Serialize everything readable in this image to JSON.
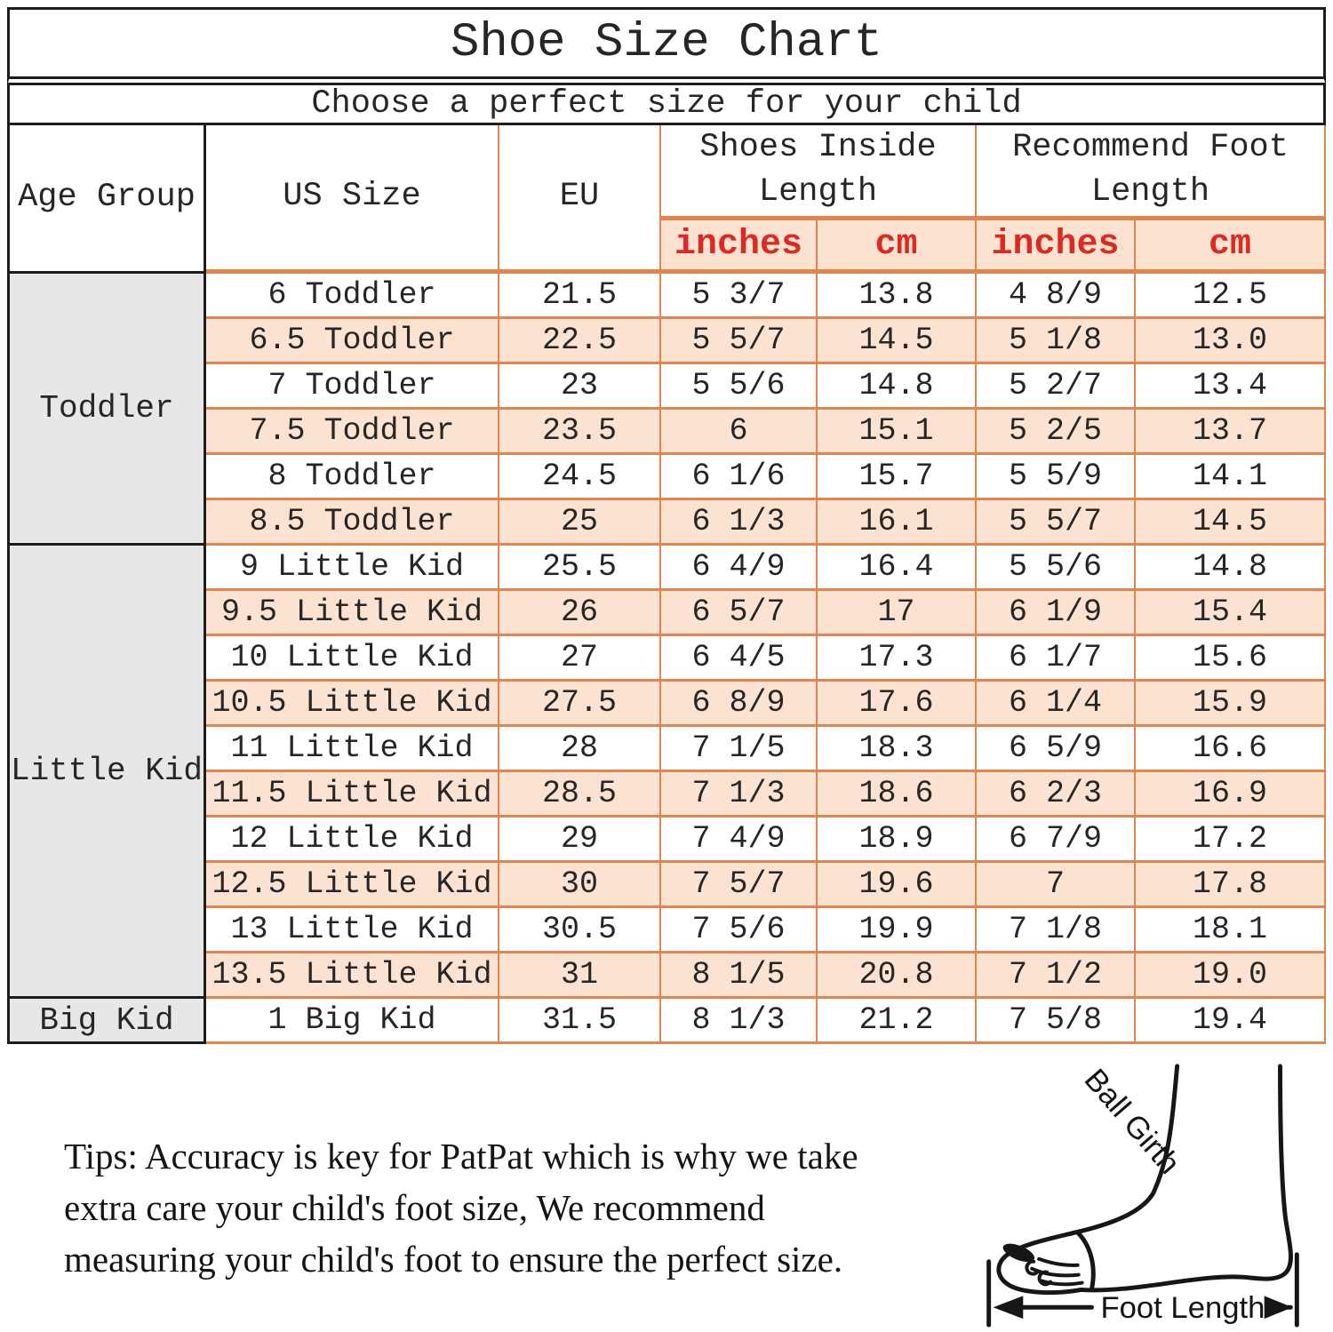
{
  "title": "Shoe Size Chart",
  "subtitle": "Choose a perfect size for your child",
  "colors": {
    "row_peach": "#fce3d1",
    "border_orange": "#e0854d",
    "subheader_red": "#dc2a22",
    "age_group_gray": "#e7e7e7",
    "border_black": "#1d1d1d",
    "text_dark": "#262626"
  },
  "table": {
    "headers": {
      "age_group": "Age Group",
      "us_size": "US Size",
      "eu": "EU",
      "shoes_inside_length": "Shoes Inside Length",
      "recommend_foot_length": "Recommend Foot Length"
    },
    "sub_headers": [
      "inches",
      "cm",
      "inches",
      "cm"
    ],
    "groups": [
      {
        "label": "Toddler",
        "rowspan": 6
      },
      {
        "label": "Little Kid",
        "rowspan": 10
      },
      {
        "label": "Big Kid",
        "rowspan": 1
      }
    ],
    "rows": [
      [
        "6 Toddler",
        "21.5",
        "5 3/7",
        "13.8",
        "4 8/9",
        "12.5"
      ],
      [
        "6.5 Toddler",
        "22.5",
        "5 5/7",
        "14.5",
        "5 1/8",
        "13.0"
      ],
      [
        "7 Toddler",
        "23",
        "5 5/6",
        "14.8",
        "5 2/7",
        "13.4"
      ],
      [
        "7.5 Toddler",
        "23.5",
        "6",
        "15.1",
        "5 2/5",
        "13.7"
      ],
      [
        "8 Toddler",
        "24.5",
        "6 1/6",
        "15.7",
        "5 5/9",
        "14.1"
      ],
      [
        "8.5 Toddler",
        "25",
        "6 1/3",
        "16.1",
        "5 5/7",
        "14.5"
      ],
      [
        "9 Little Kid",
        "25.5",
        "6 4/9",
        "16.4",
        "5 5/6",
        "14.8"
      ],
      [
        "9.5 Little Kid",
        "26",
        "6 5/7",
        "17",
        "6 1/9",
        "15.4"
      ],
      [
        "10 Little Kid",
        "27",
        "6 4/5",
        "17.3",
        "6 1/7",
        "15.6"
      ],
      [
        "10.5 Little Kid",
        "27.5",
        "6 8/9",
        "17.6",
        "6 1/4",
        "15.9"
      ],
      [
        "11 Little Kid",
        "28",
        "7 1/5",
        "18.3",
        "6 5/9",
        "16.6"
      ],
      [
        "11.5 Little Kid",
        "28.5",
        "7 1/3",
        "18.6",
        "6 2/3",
        "16.9"
      ],
      [
        "12 Little Kid",
        "29",
        "7 4/9",
        "18.9",
        "6 7/9",
        "17.2"
      ],
      [
        "12.5 Little Kid",
        "30",
        "7 5/7",
        "19.6",
        "7",
        "17.8"
      ],
      [
        "13 Little Kid",
        "30.5",
        "7 5/6",
        "19.9",
        "7 1/8",
        "18.1"
      ],
      [
        "13.5 Little Kid",
        "31",
        "8 1/5",
        "20.8",
        "7 1/2",
        "19.0"
      ],
      [
        "1 Big Kid",
        "31.5",
        "8 1/3",
        "21.2",
        "7 5/8",
        "19.4"
      ]
    ]
  },
  "tips": {
    "lines": [
      "Tips: Accuracy is key for PatPat which is why we take",
      "extra care your child's foot size, We recommend",
      "measuring your child's foot to ensure the perfect size."
    ]
  },
  "diagram": {
    "ball_girth_label": "Ball Girth",
    "foot_length_label": "Foot Length"
  }
}
